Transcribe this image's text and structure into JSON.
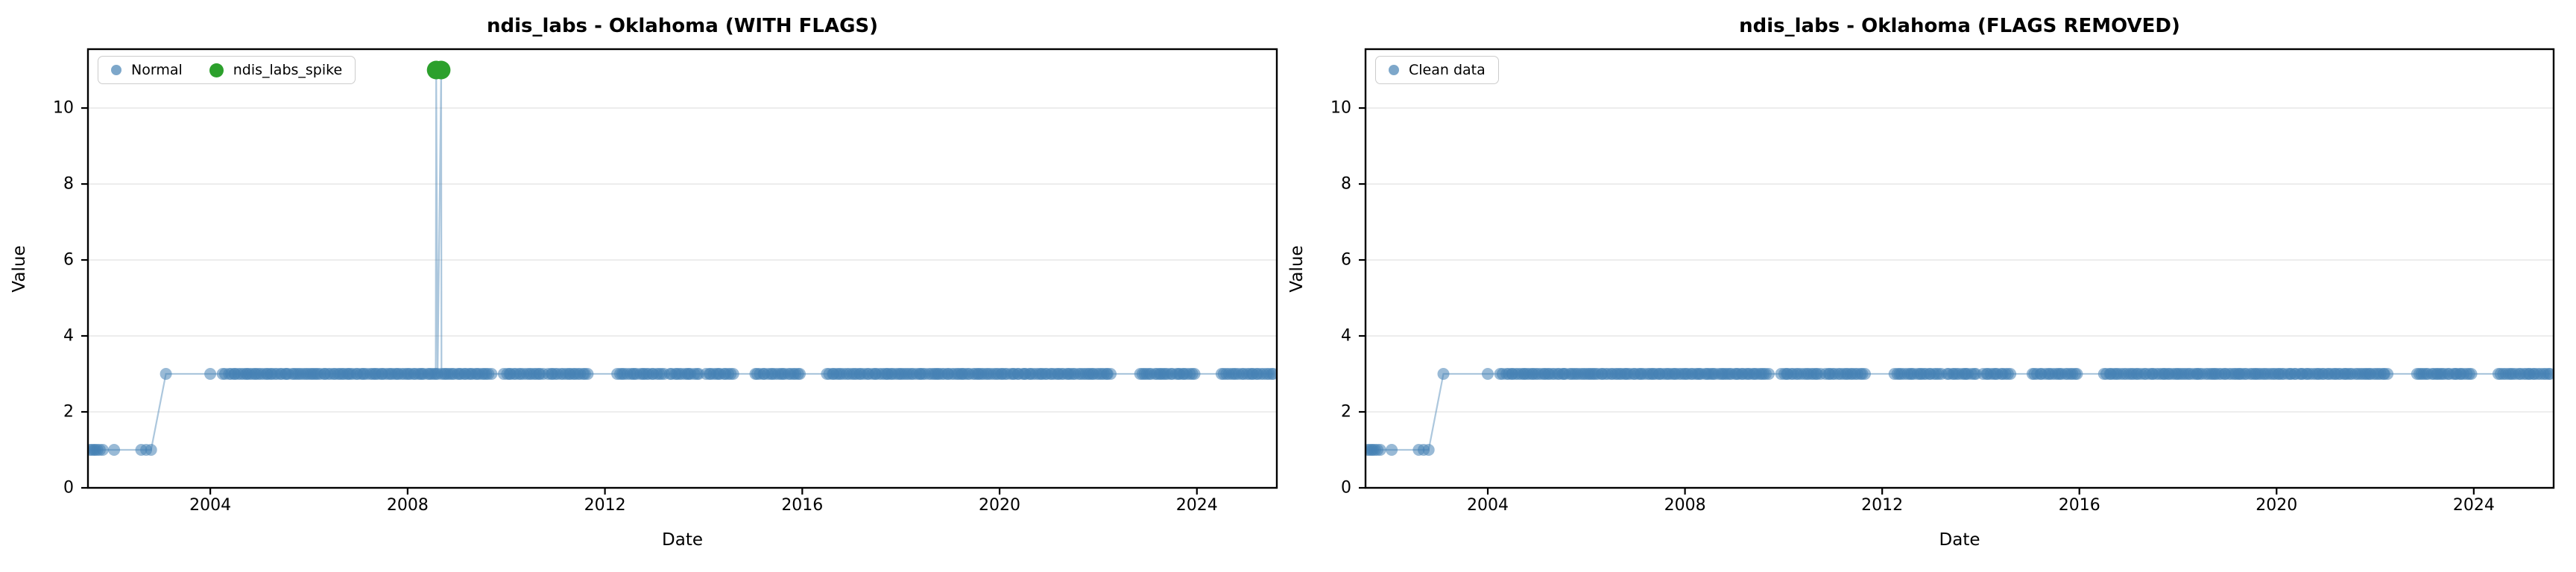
{
  "figure": {
    "background": "#ffffff",
    "description": "Two side-by-side time-series scatter/line panels"
  },
  "chart_data": {
    "type": "line+scatter",
    "x": {
      "label": "Date",
      "lim": [
        2001.52,
        2025.62
      ],
      "ticks": [
        2004,
        2008,
        2012,
        2016,
        2020,
        2024
      ]
    },
    "y": {
      "label": "Value",
      "lim": [
        0,
        11.55
      ],
      "ticks": [
        0,
        2,
        4,
        6,
        8,
        10
      ]
    },
    "grid": "horizontal-only",
    "legend_position": "upper-left",
    "colors": {
      "normal": "#4682b4",
      "spike": "#2ca02c",
      "grid": "#e8e8e8",
      "spine": "#000000",
      "marker_opacity": 0.55,
      "line_opacity": 0.45
    },
    "panels": [
      {
        "title": "ndis_labs - Oklahoma (WITH FLAGS)",
        "legend": [
          {
            "label": "Normal",
            "series": "normal"
          },
          {
            "label": "ndis_labs_spike",
            "series": "spike"
          }
        ],
        "show_spikes": true
      },
      {
        "title": "ndis_labs - Oklahoma (FLAGS REMOVED)",
        "legend": [
          {
            "label": "Clean data",
            "series": "normal"
          }
        ],
        "show_spikes": false
      }
    ],
    "normal_series": {
      "points": [
        [
          2001.56,
          1
        ],
        [
          2001.6,
          1
        ],
        [
          2001.64,
          1
        ],
        [
          2001.67,
          1
        ],
        [
          2001.71,
          1
        ],
        [
          2001.76,
          1
        ],
        [
          2001.82,
          1
        ],
        [
          2002.05,
          1
        ],
        [
          2002.6,
          1
        ],
        [
          2002.7,
          1
        ],
        [
          2002.8,
          1
        ],
        [
          2003.1,
          3
        ],
        [
          2004.0,
          3
        ],
        [
          2004.25,
          3
        ],
        [
          2004.3,
          3
        ]
      ],
      "dense_runs": [
        {
          "start": 2004.38,
          "end": 2009.7,
          "value": 3,
          "n": 115
        },
        {
          "start": 2009.95,
          "end": 2010.75,
          "value": 3,
          "n": 17
        },
        {
          "start": 2010.85,
          "end": 2011.65,
          "value": 3,
          "n": 17
        },
        {
          "start": 2012.25,
          "end": 2013.2,
          "value": 3,
          "n": 20
        },
        {
          "start": 2013.32,
          "end": 2013.9,
          "value": 3,
          "n": 13
        },
        {
          "start": 2014.05,
          "end": 2014.6,
          "value": 3,
          "n": 12
        },
        {
          "start": 2015.05,
          "end": 2015.95,
          "value": 3,
          "n": 19
        },
        {
          "start": 2016.5,
          "end": 2017.25,
          "value": 3,
          "n": 16
        },
        {
          "start": 2017.32,
          "end": 2022.25,
          "value": 3,
          "n": 105
        },
        {
          "start": 2022.85,
          "end": 2023.95,
          "value": 3,
          "n": 24
        },
        {
          "start": 2024.5,
          "end": 2025.55,
          "value": 3,
          "n": 22
        }
      ]
    },
    "spike_series": {
      "points": [
        [
          2008.58,
          11
        ],
        [
          2008.68,
          11
        ]
      ]
    }
  }
}
